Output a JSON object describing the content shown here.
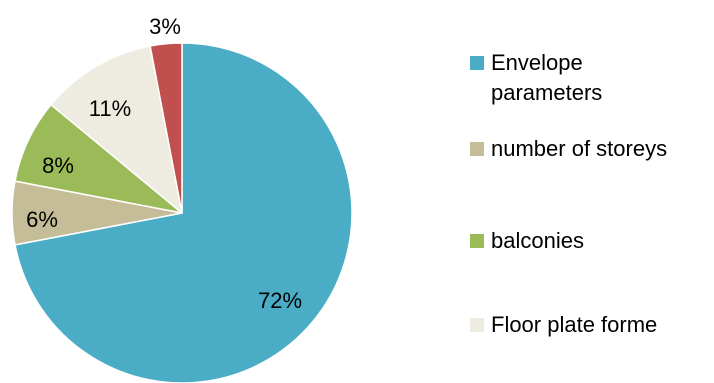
{
  "chart_data": {
    "type": "pie",
    "title": "",
    "slices": [
      {
        "label": "Envelope parameters",
        "value": 72,
        "display": "72%",
        "color": "#4bacc6"
      },
      {
        "label": "number of storeys",
        "value": 6,
        "display": "6%",
        "color": "#c4bd97"
      },
      {
        "label": "balconies",
        "value": 8,
        "display": "8%",
        "color": "#9bbb59"
      },
      {
        "label": "Floor plate forme",
        "value": 11,
        "display": "11%",
        "color": "#eeece1"
      },
      {
        "label": "",
        "value": 3,
        "display": "3%",
        "color": "#c0504d"
      }
    ],
    "start_angle": "12 o'clock",
    "direction": "clockwise",
    "legend": {
      "position": "right",
      "entries": [
        "Envelope parameters",
        "number of storeys",
        "balconies",
        "Floor plate forme"
      ]
    }
  }
}
